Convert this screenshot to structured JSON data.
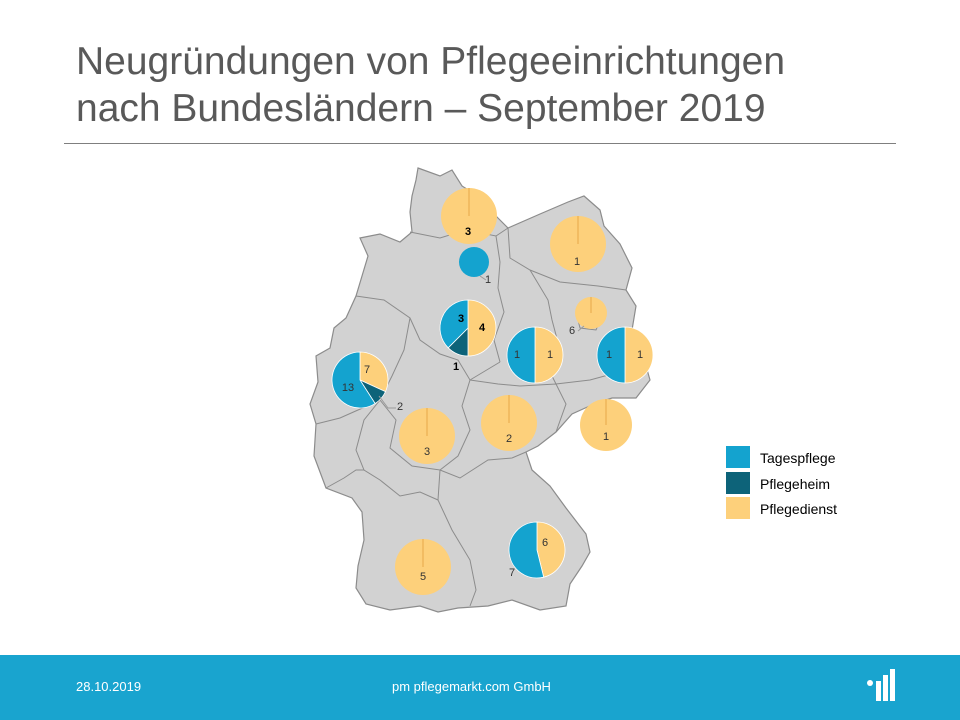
{
  "title": {
    "line1": "Neugründungen von Pflegeeinrichtungen",
    "line2": "nach Bundesländern – September 2019"
  },
  "colors": {
    "tagespflege": "#14a3cf",
    "pflegeheim": "#0d6379",
    "pflegedienst": "#fdd07b",
    "map_fill": "#d2d2d2",
    "map_border": "#8c8c8c",
    "footer": "#19a4cf"
  },
  "chart_data": {
    "type": "pie",
    "title": "Neugründungen von Pflegeeinrichtungen nach Bundesländern – September 2019",
    "legend_position": "right",
    "series_names": [
      "Tagespflege",
      "Pflegeheim",
      "Pflegedienst"
    ],
    "regions": [
      {
        "values": {
          "Tagespflege": 0,
          "Pflegeheim": 0,
          "Pflegedienst": 3
        },
        "labels": [
          "3"
        ]
      },
      {
        "values": {
          "Tagespflege": 1,
          "Pflegeheim": 0,
          "Pflegedienst": 0
        },
        "labels": [
          "1"
        ]
      },
      {
        "values": {
          "Tagespflege": 0,
          "Pflegeheim": 0,
          "Pflegedienst": 1
        },
        "labels": [
          "1"
        ]
      },
      {
        "values": {
          "Tagespflege": 0,
          "Pflegeheim": 0,
          "Pflegedienst": 6
        },
        "labels": [
          "6"
        ]
      },
      {
        "values": {
          "Tagespflege": 3,
          "Pflegeheim": 1,
          "Pflegedienst": 4
        },
        "labels": [
          "3",
          "1",
          "4"
        ]
      },
      {
        "values": {
          "Tagespflege": 1,
          "Pflegeheim": 0,
          "Pflegedienst": 1
        },
        "labels": [
          "1",
          "1"
        ]
      },
      {
        "values": {
          "Tagespflege": 1,
          "Pflegeheim": 0,
          "Pflegedienst": 1
        },
        "labels": [
          "1",
          "1"
        ]
      },
      {
        "values": {
          "Tagespflege": 13,
          "Pflegeheim": 2,
          "Pflegedienst": 7
        },
        "labels": [
          "13",
          "2",
          "7"
        ]
      },
      {
        "values": {
          "Tagespflege": 0,
          "Pflegeheim": 0,
          "Pflegedienst": 3
        },
        "labels": [
          "3"
        ]
      },
      {
        "values": {
          "Tagespflege": 0,
          "Pflegeheim": 0,
          "Pflegedienst": 2
        },
        "labels": [
          "2"
        ]
      },
      {
        "values": {
          "Tagespflege": 0,
          "Pflegeheim": 0,
          "Pflegedienst": 1
        },
        "labels": [
          "1"
        ]
      },
      {
        "values": {
          "Tagespflege": 7,
          "Pflegeheim": 0,
          "Pflegedienst": 6
        },
        "labels": [
          "7",
          "6"
        ]
      },
      {
        "values": {
          "Tagespflege": 0,
          "Pflegeheim": 0,
          "Pflegedienst": 5
        },
        "labels": [
          "5"
        ]
      }
    ]
  },
  "legend": {
    "items": [
      {
        "label": "Tagespflege"
      },
      {
        "label": "Pflegeheim"
      },
      {
        "label": "Pflegedienst"
      }
    ]
  },
  "footer": {
    "date": "28.10.2019",
    "company": "pm pflegemarkt.com GmbH"
  }
}
